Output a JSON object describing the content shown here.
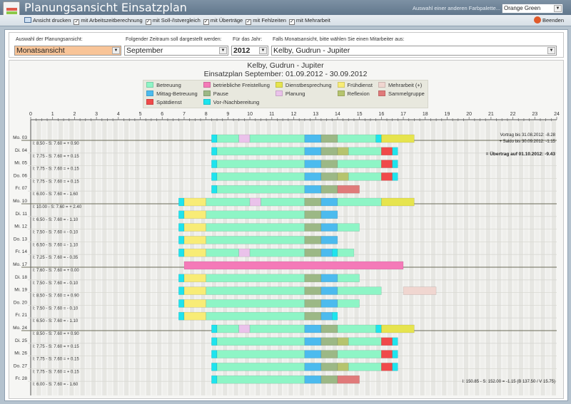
{
  "window": {
    "title": "Planungsansicht Einsatzplan",
    "palette_label": "Auswahl einer anderen Farbpalette...",
    "palette_value": "Orange Green"
  },
  "toolbar": {
    "print": "Ansicht drucken",
    "options": [
      {
        "label": "mit Arbeitszeitberechnung",
        "checked": true
      },
      {
        "label": "mit Soll-/Istvergleich",
        "checked": true
      },
      {
        "label": "mit Überträge",
        "checked": true
      },
      {
        "label": "mit Fehlzeiten",
        "checked": true
      },
      {
        "label": "mit Mehrarbeit",
        "checked": true
      }
    ],
    "exit": "Beenden"
  },
  "controls": {
    "view_label": "Auswahl der Planungsansicht:",
    "view_value": "Monatsansicht",
    "period_label": "Folgender Zeitraum soll dargestellt werden:",
    "period_value": "September",
    "year_label": "Für das Jahr:",
    "year_value": "2012",
    "employee_label": "Falls Monatsansicht, bitte wählen Sie einen Mitarbeiter aus:",
    "employee_value": "Kelby, Gudrun - Jupiter"
  },
  "chart_data": {
    "type": "gantt",
    "title": "Kelby, Gudrun - Jupiter",
    "subtitle": "Einsatzplan September: 01.09.2012 - 30.09.2012",
    "xlim": [
      0,
      24
    ],
    "xticks": [
      "0",
      "1",
      "2",
      "3",
      "4",
      "5",
      "6",
      "7",
      "8",
      "9",
      "10",
      "11",
      "12",
      "13",
      "14",
      "15",
      "16",
      "17",
      "18",
      "19",
      "20",
      "21",
      "22",
      "23",
      "24"
    ],
    "legend": [
      {
        "key": "B",
        "name": "Betreuung",
        "color": "#8ef5c6"
      },
      {
        "key": "M",
        "name": "Mittag-Betreuung",
        "color": "#4cbbee"
      },
      {
        "key": "S",
        "name": "Spätdienst",
        "color": "#f04a4a"
      },
      {
        "key": "F",
        "name": "betriebliche Freistellung",
        "color": "#f47ab8"
      },
      {
        "key": "P",
        "name": "Pause",
        "color": "#9cb886"
      },
      {
        "key": "V",
        "name": "Vor-/Nachbereitung",
        "color": "#1ee4ee"
      },
      {
        "key": "D",
        "name": "Dienstbesprechung",
        "color": "#e6e44e"
      },
      {
        "key": "PL",
        "name": "Planung",
        "color": "#eac2ea"
      },
      {
        "key": "FR",
        "name": "Frühdienst",
        "color": "#f8ec76"
      },
      {
        "key": "R",
        "name": "Reflexion",
        "color": "#b6c46e"
      },
      {
        "key": "MA",
        "name": "Mehrarbeit (+)",
        "color": "#f0d6d0"
      },
      {
        "key": "SG",
        "name": "Sammelgruppe",
        "color": "#e07a7a"
      }
    ],
    "rows": [
      {
        "day": "Mo. 03",
        "summary": "I: 8.50 - S: 7.60 = + 0.90",
        "week_start": true,
        "segments": [
          [
            8.25,
            8.5,
            "V"
          ],
          [
            8.5,
            9.5,
            "B"
          ],
          [
            9.5,
            10,
            "PL"
          ],
          [
            10,
            12.5,
            "B"
          ],
          [
            12.5,
            13.25,
            "M"
          ],
          [
            13.25,
            14,
            "P"
          ],
          [
            14,
            15.75,
            "B"
          ],
          [
            15.75,
            16,
            "V"
          ],
          [
            16,
            17.5,
            "D"
          ]
        ]
      },
      {
        "day": "Di. 04",
        "summary": "I: 7.75 - S: 7.60 = + 0.15",
        "segments": [
          [
            8.25,
            8.5,
            "V"
          ],
          [
            8.5,
            12.5,
            "B"
          ],
          [
            12.5,
            13.25,
            "M"
          ],
          [
            13.25,
            14,
            "P"
          ],
          [
            14,
            14.5,
            "R"
          ],
          [
            14.5,
            16,
            "B"
          ],
          [
            16,
            16.5,
            "S"
          ],
          [
            16.5,
            16.75,
            "V"
          ]
        ]
      },
      {
        "day": "Mi. 05",
        "summary": "I: 7.75 - S: 7.60 = + 0.15",
        "segments": [
          [
            8.25,
            8.5,
            "V"
          ],
          [
            8.5,
            12.5,
            "B"
          ],
          [
            12.5,
            13.25,
            "M"
          ],
          [
            13.25,
            14,
            "P"
          ],
          [
            14,
            16,
            "B"
          ],
          [
            16,
            16.5,
            "S"
          ],
          [
            16.5,
            16.75,
            "V"
          ]
        ]
      },
      {
        "day": "Do. 06",
        "summary": "I: 7.75 - S: 7.60 = + 0.15",
        "segments": [
          [
            8.25,
            8.5,
            "V"
          ],
          [
            8.5,
            12.5,
            "B"
          ],
          [
            12.5,
            13.25,
            "M"
          ],
          [
            13.25,
            14,
            "P"
          ],
          [
            14,
            14.5,
            "R"
          ],
          [
            14.5,
            16,
            "B"
          ],
          [
            16,
            16.5,
            "S"
          ],
          [
            16.5,
            16.75,
            "V"
          ]
        ]
      },
      {
        "day": "Fr. 07",
        "summary": "I: 6.00 - S: 7.60 = - 1.60",
        "segments": [
          [
            8.25,
            8.5,
            "V"
          ],
          [
            8.5,
            12.5,
            "B"
          ],
          [
            12.5,
            13.25,
            "M"
          ],
          [
            13.25,
            14,
            "P"
          ],
          [
            14,
            15,
            "SG"
          ]
        ]
      },
      {
        "day": "Mo. 10",
        "summary": "I: 10.00 - S: 7.60 = + 2.40",
        "week_start": true,
        "segments": [
          [
            6.75,
            7,
            "V"
          ],
          [
            7,
            8,
            "FR"
          ],
          [
            8,
            10,
            "B"
          ],
          [
            10,
            10.5,
            "PL"
          ],
          [
            10.5,
            12.5,
            "B"
          ],
          [
            12.5,
            13.25,
            "P"
          ],
          [
            13.25,
            14,
            "M"
          ],
          [
            14,
            16,
            "B"
          ],
          [
            16,
            17.5,
            "D"
          ]
        ]
      },
      {
        "day": "Di. 11",
        "summary": "I: 6.50 - S: 7.60 = - 1.10",
        "segments": [
          [
            6.75,
            7,
            "V"
          ],
          [
            7,
            8,
            "FR"
          ],
          [
            8,
            12.5,
            "B"
          ],
          [
            12.5,
            13.25,
            "P"
          ],
          [
            13.25,
            14,
            "M"
          ]
        ]
      },
      {
        "day": "Mi. 12",
        "summary": "I: 7.50 - S: 7.60 = - 0.10",
        "segments": [
          [
            6.75,
            7,
            "V"
          ],
          [
            7,
            8,
            "FR"
          ],
          [
            8,
            12.5,
            "B"
          ],
          [
            12.5,
            13.25,
            "P"
          ],
          [
            13.25,
            14,
            "M"
          ],
          [
            14,
            15,
            "B"
          ]
        ]
      },
      {
        "day": "Do. 13",
        "summary": "I: 6.50 - S: 7.60 = - 1.10",
        "segments": [
          [
            6.75,
            7,
            "V"
          ],
          [
            7,
            8,
            "FR"
          ],
          [
            8,
            12.5,
            "B"
          ],
          [
            12.5,
            13.25,
            "P"
          ],
          [
            13.25,
            14,
            "M"
          ]
        ]
      },
      {
        "day": "Fr. 14",
        "summary": "I: 7.25 - S: 7.60 = - 0.35",
        "segments": [
          [
            6.75,
            7,
            "V"
          ],
          [
            7,
            8,
            "FR"
          ],
          [
            8,
            9.5,
            "B"
          ],
          [
            9.5,
            10,
            "PL"
          ],
          [
            10,
            12.5,
            "B"
          ],
          [
            12.5,
            13.25,
            "P"
          ],
          [
            13.25,
            13.75,
            "M"
          ],
          [
            13.75,
            14,
            "V"
          ],
          [
            14,
            14.75,
            "B"
          ]
        ]
      },
      {
        "day": "Mo. 17",
        "summary": "I: 7.60 - S: 7.60 = + 0.00",
        "week_start": true,
        "segments": [
          [
            7,
            17,
            "F"
          ]
        ]
      },
      {
        "day": "Di. 18",
        "summary": "I: 7.50 - S: 7.60 = - 0.10",
        "segments": [
          [
            6.75,
            7,
            "V"
          ],
          [
            7,
            8,
            "FR"
          ],
          [
            8,
            12.5,
            "B"
          ],
          [
            12.5,
            13.25,
            "P"
          ],
          [
            13.25,
            14,
            "M"
          ],
          [
            14,
            15,
            "B"
          ]
        ]
      },
      {
        "day": "Mi. 19",
        "summary": "I: 8.50 - S: 7.60 = + 0.90",
        "segments": [
          [
            6.75,
            7,
            "V"
          ],
          [
            7,
            8,
            "FR"
          ],
          [
            8,
            12.5,
            "B"
          ],
          [
            12.5,
            13.25,
            "P"
          ],
          [
            13.25,
            14,
            "M"
          ],
          [
            14,
            16,
            "B"
          ],
          [
            17,
            18.5,
            "MA"
          ]
        ]
      },
      {
        "day": "Do. 20",
        "summary": "I: 7.50 - S: 7.60 = - 0.10",
        "segments": [
          [
            6.75,
            7,
            "V"
          ],
          [
            7,
            8,
            "FR"
          ],
          [
            8,
            12.5,
            "B"
          ],
          [
            12.5,
            13.25,
            "P"
          ],
          [
            13.25,
            14,
            "M"
          ],
          [
            14,
            15,
            "B"
          ]
        ]
      },
      {
        "day": "Fr. 21",
        "summary": "I: 6.50 - S: 7.60 = - 1.10",
        "segments": [
          [
            6.75,
            7,
            "V"
          ],
          [
            7,
            8,
            "FR"
          ],
          [
            8,
            12.5,
            "B"
          ],
          [
            12.5,
            13.25,
            "P"
          ],
          [
            13.25,
            13.75,
            "M"
          ],
          [
            13.75,
            14,
            "V"
          ]
        ]
      },
      {
        "day": "Mo. 24",
        "summary": "I: 8.50 - S: 7.60 = + 0.90",
        "week_start": true,
        "segments": [
          [
            8.25,
            8.5,
            "V"
          ],
          [
            8.5,
            9.5,
            "B"
          ],
          [
            9.5,
            10,
            "PL"
          ],
          [
            10,
            12.5,
            "B"
          ],
          [
            12.5,
            13.25,
            "M"
          ],
          [
            13.25,
            14,
            "P"
          ],
          [
            14,
            15.75,
            "B"
          ],
          [
            15.75,
            16,
            "V"
          ],
          [
            16,
            17.5,
            "D"
          ]
        ]
      },
      {
        "day": "Di. 25",
        "summary": "I: 7.75 - S: 7.60 = + 0.15",
        "segments": [
          [
            8.25,
            8.5,
            "V"
          ],
          [
            8.5,
            12.5,
            "B"
          ],
          [
            12.5,
            13.25,
            "M"
          ],
          [
            13.25,
            14,
            "P"
          ],
          [
            14,
            14.5,
            "R"
          ],
          [
            14.5,
            16,
            "B"
          ],
          [
            16,
            16.5,
            "S"
          ],
          [
            16.5,
            16.75,
            "V"
          ]
        ]
      },
      {
        "day": "Mi. 26",
        "summary": "I: 7.75 - S: 7.60 = + 0.15",
        "segments": [
          [
            8.25,
            8.5,
            "V"
          ],
          [
            8.5,
            12.5,
            "B"
          ],
          [
            12.5,
            13.25,
            "M"
          ],
          [
            13.25,
            14,
            "P"
          ],
          [
            14,
            16,
            "B"
          ],
          [
            16,
            16.5,
            "S"
          ],
          [
            16.5,
            16.75,
            "V"
          ]
        ]
      },
      {
        "day": "Do. 27",
        "summary": "I: 7.75 - S: 7.60 = + 0.15",
        "segments": [
          [
            8.25,
            8.5,
            "V"
          ],
          [
            8.5,
            12.5,
            "B"
          ],
          [
            12.5,
            13.25,
            "M"
          ],
          [
            13.25,
            14,
            "P"
          ],
          [
            14,
            14.5,
            "R"
          ],
          [
            14.5,
            16,
            "B"
          ],
          [
            16,
            16.5,
            "S"
          ],
          [
            16.5,
            16.75,
            "V"
          ]
        ]
      },
      {
        "day": "Fr. 28",
        "summary": "I: 6.00 - S: 7.60 = - 1.60",
        "segments": [
          [
            8.25,
            8.5,
            "V"
          ],
          [
            8.5,
            12.5,
            "B"
          ],
          [
            12.5,
            13.25,
            "M"
          ],
          [
            13.25,
            14,
            "P"
          ],
          [
            14,
            15,
            "SG"
          ]
        ]
      }
    ],
    "balance": {
      "carry_in": "Vortrag bis 31.08.2012: -8.28",
      "saldo": "+ Saldo bis 30.09.2012: -1.15",
      "carry_out": "= Übertrag auf 01.10.2012: -9.43"
    },
    "total": "I: 150.85 - S: 152.00 = -1.15  (B 137.50 / V 15.75)"
  }
}
